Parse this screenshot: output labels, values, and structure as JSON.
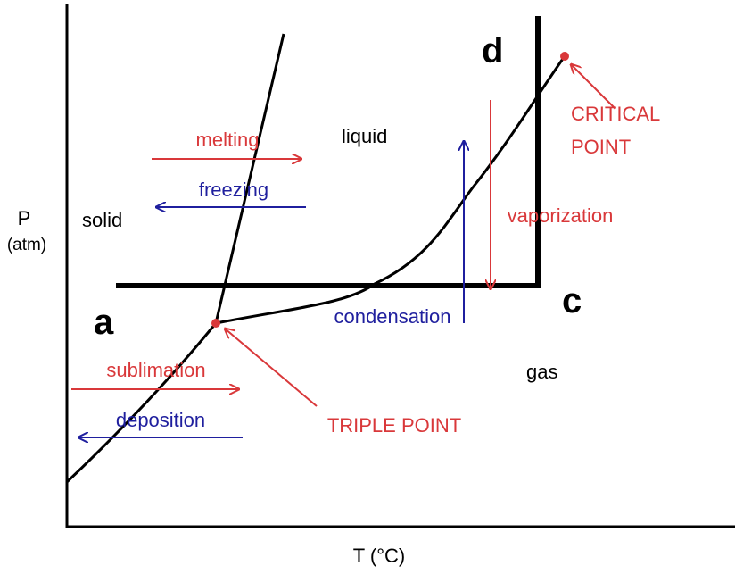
{
  "axes": {
    "y_label": "P",
    "y_unit": "(atm)",
    "x_label": "T (°C)"
  },
  "regions": {
    "solid": "solid",
    "liquid": "liquid",
    "gas": "gas"
  },
  "transitions": {
    "melting": "melting",
    "freezing": "freezing",
    "sublimation": "sublimation",
    "deposition": "deposition",
    "condensation": "condensation",
    "vaporization": "vaporization"
  },
  "points": {
    "critical": [
      "CRITICAL",
      "POINT"
    ],
    "triple": "TRIPLE POINT"
  },
  "markers": {
    "a": "a",
    "c": "c",
    "d": "d"
  }
}
